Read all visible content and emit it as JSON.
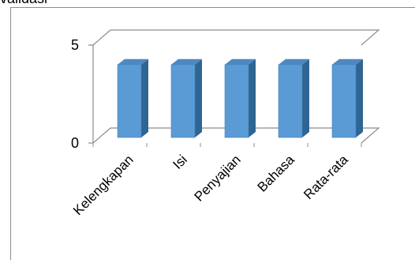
{
  "page": {
    "top_text": "validasi"
  },
  "chart_data": {
    "type": "bar",
    "categories": [
      "Kelengkapan",
      "Isi",
      "Penyajian",
      "Bahasa",
      "Rata-rata"
    ],
    "values": [
      4,
      4,
      4,
      4,
      4
    ],
    "ylim": [
      0,
      5
    ],
    "yticks": [
      0,
      5
    ],
    "grid": true,
    "legend": "none",
    "colors": {
      "bar_front": "#5b9bd5",
      "bar_side": "#2f6592",
      "bar_top": "#4f88bf",
      "grid": "#8c8c8c",
      "frame": "#8c8c8c"
    }
  }
}
